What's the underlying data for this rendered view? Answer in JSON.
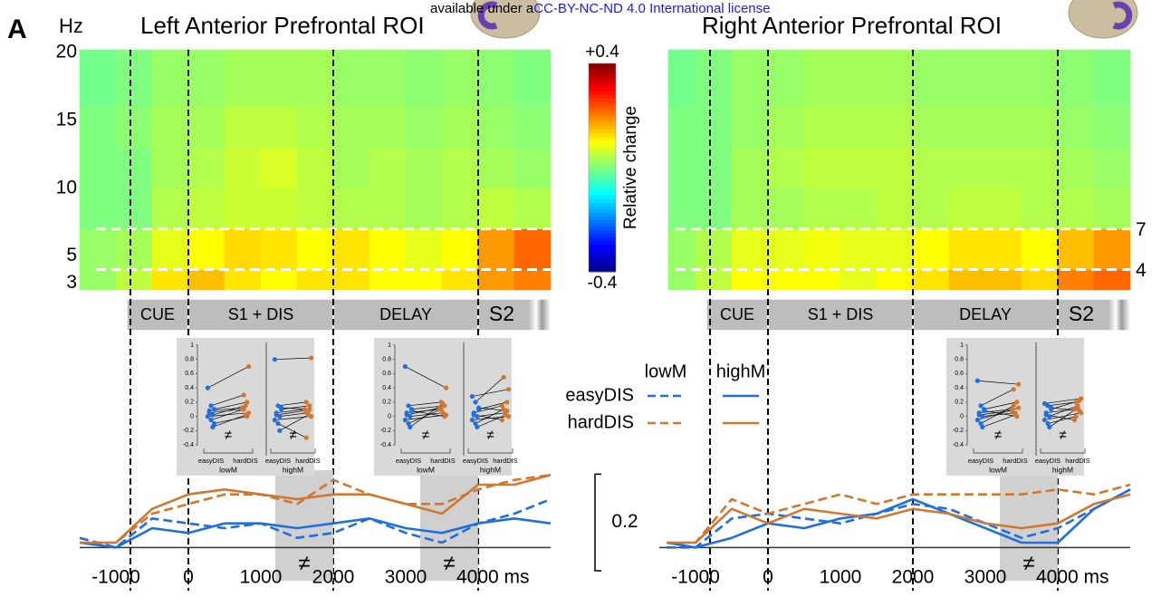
{
  "header": {
    "panel": "A",
    "license_prefix": "available under a",
    "license_link": "CC-BY-NC-ND 4.0 International license"
  },
  "chart_data": [
    {
      "type": "heatmap",
      "title": "Left Anterior Prefrontal ROI",
      "y_label": "Hz",
      "xlim": [
        -1500,
        5000
      ],
      "ylim": [
        2.5,
        20.2
      ],
      "yticks": [
        3,
        5,
        10,
        15,
        20
      ],
      "x_edges": [
        -1500,
        -1000,
        -500,
        0,
        500,
        1000,
        1500,
        2000,
        2500,
        3000,
        3500,
        4000,
        4500,
        5000
      ],
      "y_edges": [
        2.5,
        4,
        7,
        10,
        13,
        16,
        20.2
      ],
      "z": [
        [
          0.02,
          0.05,
          0.12,
          0.15,
          0.12,
          0.1,
          0.12,
          0.12,
          0.1,
          0.1,
          0.12,
          0.18,
          0.2
        ],
        [
          0.02,
          0.03,
          0.08,
          0.1,
          0.13,
          0.12,
          0.1,
          0.12,
          0.1,
          0.08,
          0.1,
          0.18,
          0.22
        ],
        [
          0,
          0,
          0.04,
          0.05,
          0.06,
          0.06,
          0.05,
          0.04,
          0.04,
          0.03,
          0.04,
          0.05,
          0.04
        ],
        [
          0,
          0,
          0.03,
          0.04,
          0.06,
          0.07,
          0.05,
          0.03,
          0.04,
          0.03,
          0.04,
          0.03,
          0.02
        ],
        [
          0,
          0.01,
          0.03,
          0.03,
          0.05,
          0.05,
          0.04,
          0.03,
          0.03,
          0.02,
          0.03,
          0.02,
          0.01
        ],
        [
          -0.01,
          0,
          0.02,
          0.02,
          0.03,
          0.03,
          0.03,
          0.02,
          0.02,
          0.01,
          0.02,
          0.01,
          0
        ]
      ],
      "clim": [
        -0.4,
        0.4
      ],
      "colormap": "jet",
      "colorbar": {
        "label": "Relative change",
        "ticks": [
          {
            "value": 0.4,
            "label": "+0.4"
          },
          -0.4
        ]
      },
      "events": [
        -800,
        0,
        2000,
        4000
      ],
      "band_lines": [
        7,
        4
      ],
      "band_labels": false,
      "epochs": [
        {
          "label": "CUE",
          "start": -850,
          "end": 0
        },
        {
          "label": "S1 + DIS",
          "start": 0,
          "end": 2000
        },
        {
          "label": "DELAY",
          "start": 2000,
          "end": 4000
        },
        {
          "label": "S2",
          "start": 4000,
          "end": 5000,
          "fade": true
        }
      ]
    },
    {
      "type": "heatmap",
      "title": "Right Anterior Prefrontal ROI",
      "xlim": [
        -1500,
        5000
      ],
      "ylim": [
        2.5,
        20.2
      ],
      "x_edges": [
        -1375,
        -1000,
        -500,
        0,
        500,
        1000,
        1500,
        2000,
        2500,
        3000,
        3500,
        4000,
        4500,
        5000
      ],
      "y_edges": [
        2.5,
        4,
        7,
        10,
        13,
        16,
        20.2
      ],
      "z": [
        [
          0.02,
          0.05,
          0.1,
          0.1,
          0.1,
          0.08,
          0.1,
          0.12,
          0.15,
          0.15,
          0.13,
          0.2,
          0.22
        ],
        [
          0.02,
          0.04,
          0.08,
          0.08,
          0.09,
          0.08,
          0.08,
          0.1,
          0.12,
          0.12,
          0.1,
          0.15,
          0.18
        ],
        [
          0,
          0,
          0.03,
          0.03,
          0.04,
          0.04,
          0.05,
          0.04,
          0.05,
          0.05,
          0.04,
          0.04,
          0.03
        ],
        [
          0,
          0,
          0.03,
          0.04,
          0.05,
          0.05,
          0.05,
          0.04,
          0.04,
          0.04,
          0.04,
          0.03,
          0.02
        ],
        [
          0,
          0,
          0.02,
          0.03,
          0.04,
          0.04,
          0.04,
          0.03,
          0.03,
          0.03,
          0.03,
          0.02,
          0.01
        ],
        [
          -0.01,
          0,
          0.02,
          0.02,
          0.03,
          0.03,
          0.03,
          0.02,
          0.02,
          0.02,
          0.02,
          0.01,
          0
        ]
      ],
      "clim": [
        -0.4,
        0.4
      ],
      "colormap": "jet",
      "events": [
        -800,
        0,
        2000,
        4000
      ],
      "band_lines": [
        7,
        4
      ],
      "band_labels": true,
      "epochs": [
        {
          "label": "CUE",
          "start": -850,
          "end": 0
        },
        {
          "label": "S1 + DIS",
          "start": 0,
          "end": 2000
        },
        {
          "label": "DELAY",
          "start": 2000,
          "end": 4000
        },
        {
          "label": "S2",
          "start": 4000,
          "end": 5000,
          "fade": true
        }
      ]
    },
    {
      "type": "line",
      "xlim": [
        -1500,
        5000
      ],
      "ylim": [
        -0.05,
        0.16
      ],
      "xticks": [
        -1000,
        0,
        1000,
        2000,
        3000,
        {
          "value": 4000,
          "label": "4000 ms"
        }
      ],
      "x": [
        -1500,
        -1000,
        -500,
        0,
        500,
        1000,
        1500,
        2000,
        2500,
        3000,
        3500,
        4000,
        4500,
        5000
      ],
      "series": [
        {
          "dis": "easyDIS",
          "mem": "lowM",
          "color": "#1f6fe0",
          "style": "dashed",
          "values": [
            0.02,
            0,
            0.06,
            0.05,
            0.04,
            0.05,
            0.02,
            0.03,
            0.06,
            0.03,
            0.01,
            0.05,
            0.07,
            0.1
          ]
        },
        {
          "dis": "easyDIS",
          "mem": "highM",
          "color": "#1f6fe0",
          "style": "solid",
          "values": [
            0.01,
            0,
            0.04,
            0.03,
            0.05,
            0.05,
            0.04,
            0.05,
            0.06,
            0.04,
            0.03,
            0.05,
            0.06,
            0.05
          ]
        },
        {
          "dis": "hardDIS",
          "mem": "lowM",
          "color": "#d0782f",
          "style": "dashed",
          "values": [
            0.01,
            0.01,
            0.07,
            0.09,
            0.11,
            0.11,
            0.09,
            0.14,
            0.11,
            0.09,
            0.09,
            0.12,
            0.14,
            0.15
          ]
        },
        {
          "dis": "hardDIS",
          "mem": "highM",
          "color": "#d0782f",
          "style": "solid",
          "values": [
            0.01,
            0.01,
            0.08,
            0.11,
            0.12,
            0.11,
            0.1,
            0.11,
            0.11,
            0.09,
            0.07,
            0.13,
            0.13,
            0.15
          ]
        }
      ],
      "sig": [
        {
          "start": 1200,
          "end": 2000,
          "label": "≠"
        },
        {
          "start": 3200,
          "end": 4000,
          "label": "≠"
        }
      ],
      "scale_bar": 0.2,
      "legend_columns": [
        "lowM",
        "highM"
      ],
      "legend_rows": [
        "easyDIS",
        "hardDIS"
      ]
    },
    {
      "type": "line",
      "xlim": [
        -1500,
        5000
      ],
      "ylim": [
        -0.05,
        0.16
      ],
      "xticks": [
        -1000,
        0,
        1000,
        2000,
        3000,
        {
          "value": 4000,
          "label": "4000 ms"
        }
      ],
      "x": [
        -1400,
        -1000,
        -500,
        0,
        500,
        1000,
        1500,
        2000,
        2500,
        3000,
        3500,
        4000,
        4500,
        5000
      ],
      "series": [
        {
          "color": "#1f6fe0",
          "style": "dashed",
          "values": [
            0,
            0,
            0.06,
            0.07,
            0.06,
            0.05,
            0.07,
            0.09,
            0.08,
            0.05,
            0.02,
            0.04,
            0.08,
            0.12
          ]
        },
        {
          "color": "#1f6fe0",
          "style": "solid",
          "values": [
            0.01,
            0,
            0.02,
            0.05,
            0.04,
            0.06,
            0.07,
            0.1,
            0.07,
            0.04,
            0.01,
            0.01,
            0.08,
            0.12
          ]
        },
        {
          "color": "#d0782f",
          "style": "dashed",
          "values": [
            0.01,
            0.01,
            0.1,
            0.07,
            0.09,
            0.11,
            0.09,
            0.11,
            0.11,
            0.11,
            0.11,
            0.12,
            0.11,
            0.13
          ]
        },
        {
          "color": "#d0782f",
          "style": "solid",
          "values": [
            0.01,
            0.01,
            0.08,
            0.05,
            0.08,
            0.07,
            0.06,
            0.08,
            0.07,
            0.05,
            0.04,
            0.05,
            0.09,
            0.11
          ]
        }
      ],
      "sig": [
        {
          "start": 3200,
          "end": 4000,
          "label": "≠"
        }
      ]
    },
    {
      "type": "paired_scatter",
      "ylim": [
        -0.45,
        1.05
      ],
      "yticks": [
        1,
        0.8,
        0.6,
        0.4,
        0.2,
        0,
        -0.2,
        -0.4
      ],
      "colors": [
        "#1f6fe0",
        "#d0782f"
      ],
      "label": "≠",
      "groups": [
        {
          "name": "lowM",
          "conditions": [
            "easyDIS",
            "hardDIS"
          ],
          "values": [
            [
              0.4,
              0.15,
              0.1,
              0.05,
              0.02,
              0,
              -0.05,
              -0.1,
              0.08,
              -0.15
            ],
            [
              0.7,
              0.3,
              0.2,
              0.1,
              0.15,
              0.05,
              0.1,
              0,
              0.12,
              0.02
            ]
          ]
        },
        {
          "name": "highM",
          "conditions": [
            "easyDIS",
            "hardDIS"
          ],
          "values": [
            [
              0.8,
              0.15,
              0.1,
              0.05,
              0,
              -0.05,
              -0.1,
              0.12,
              0.02,
              -0.2
            ],
            [
              0.82,
              0.2,
              0.15,
              0.1,
              0.05,
              0,
              -0.3,
              0.1,
              0.08,
              0.02
            ]
          ]
        }
      ]
    },
    {
      "type": "paired_scatter",
      "ylim": [
        -0.45,
        1.05
      ],
      "yticks": [
        1,
        0.8,
        0.6,
        0.4,
        0.2,
        0,
        -0.2,
        -0.4
      ],
      "colors": [
        "#1f6fe0",
        "#d0782f"
      ],
      "label": "≠",
      "groups": [
        {
          "name": "lowM",
          "conditions": [
            "easyDIS",
            "hardDIS"
          ],
          "values": [
            [
              0.7,
              0.15,
              0.1,
              0.05,
              0,
              -0.05,
              -0.1,
              0.08,
              0.02,
              -0.15
            ],
            [
              0.4,
              0.2,
              0.15,
              0.1,
              0.05,
              0.02,
              0.1,
              0,
              0.12,
              0.18
            ]
          ]
        },
        {
          "name": "highM",
          "conditions": [
            "easyDIS",
            "hardDIS"
          ],
          "values": [
            [
              0.28,
              0.2,
              0.1,
              0.05,
              0,
              -0.05,
              -0.1,
              0.12,
              0.02,
              -0.15
            ],
            [
              0.38,
              0.55,
              0.2,
              0.15,
              0.05,
              0,
              0.1,
              0.08,
              -0.05,
              0.02
            ]
          ]
        }
      ]
    },
    {
      "type": "paired_scatter",
      "ylim": [
        -0.45,
        1.05
      ],
      "yticks": [
        1,
        0.8,
        0.6,
        0.4,
        0.2,
        0,
        -0.2,
        -0.4
      ],
      "colors": [
        "#1f6fe0",
        "#d0782f"
      ],
      "label": "≠",
      "groups": [
        {
          "name": "lowM",
          "conditions": [
            "easyDIS",
            "hardDIS"
          ],
          "values": [
            [
              0.5,
              0.15,
              0.1,
              0.05,
              0,
              -0.05,
              -0.1,
              0.08,
              0.02,
              -0.15
            ],
            [
              0.45,
              0.38,
              0.2,
              0.1,
              0.05,
              0.12,
              0.15,
              0,
              0.08,
              0.02
            ]
          ]
        },
        {
          "name": "highM",
          "conditions": [
            "easyDIS",
            "hardDIS"
          ],
          "values": [
            [
              0.18,
              0.15,
              0.1,
              0.05,
              0,
              -0.05,
              -0.1,
              0.12,
              0.02,
              -0.15
            ],
            [
              0.25,
              0.2,
              0.22,
              0.1,
              0.15,
              0.05,
              0,
              0.08,
              -0.05,
              0.12
            ]
          ]
        }
      ]
    }
  ]
}
